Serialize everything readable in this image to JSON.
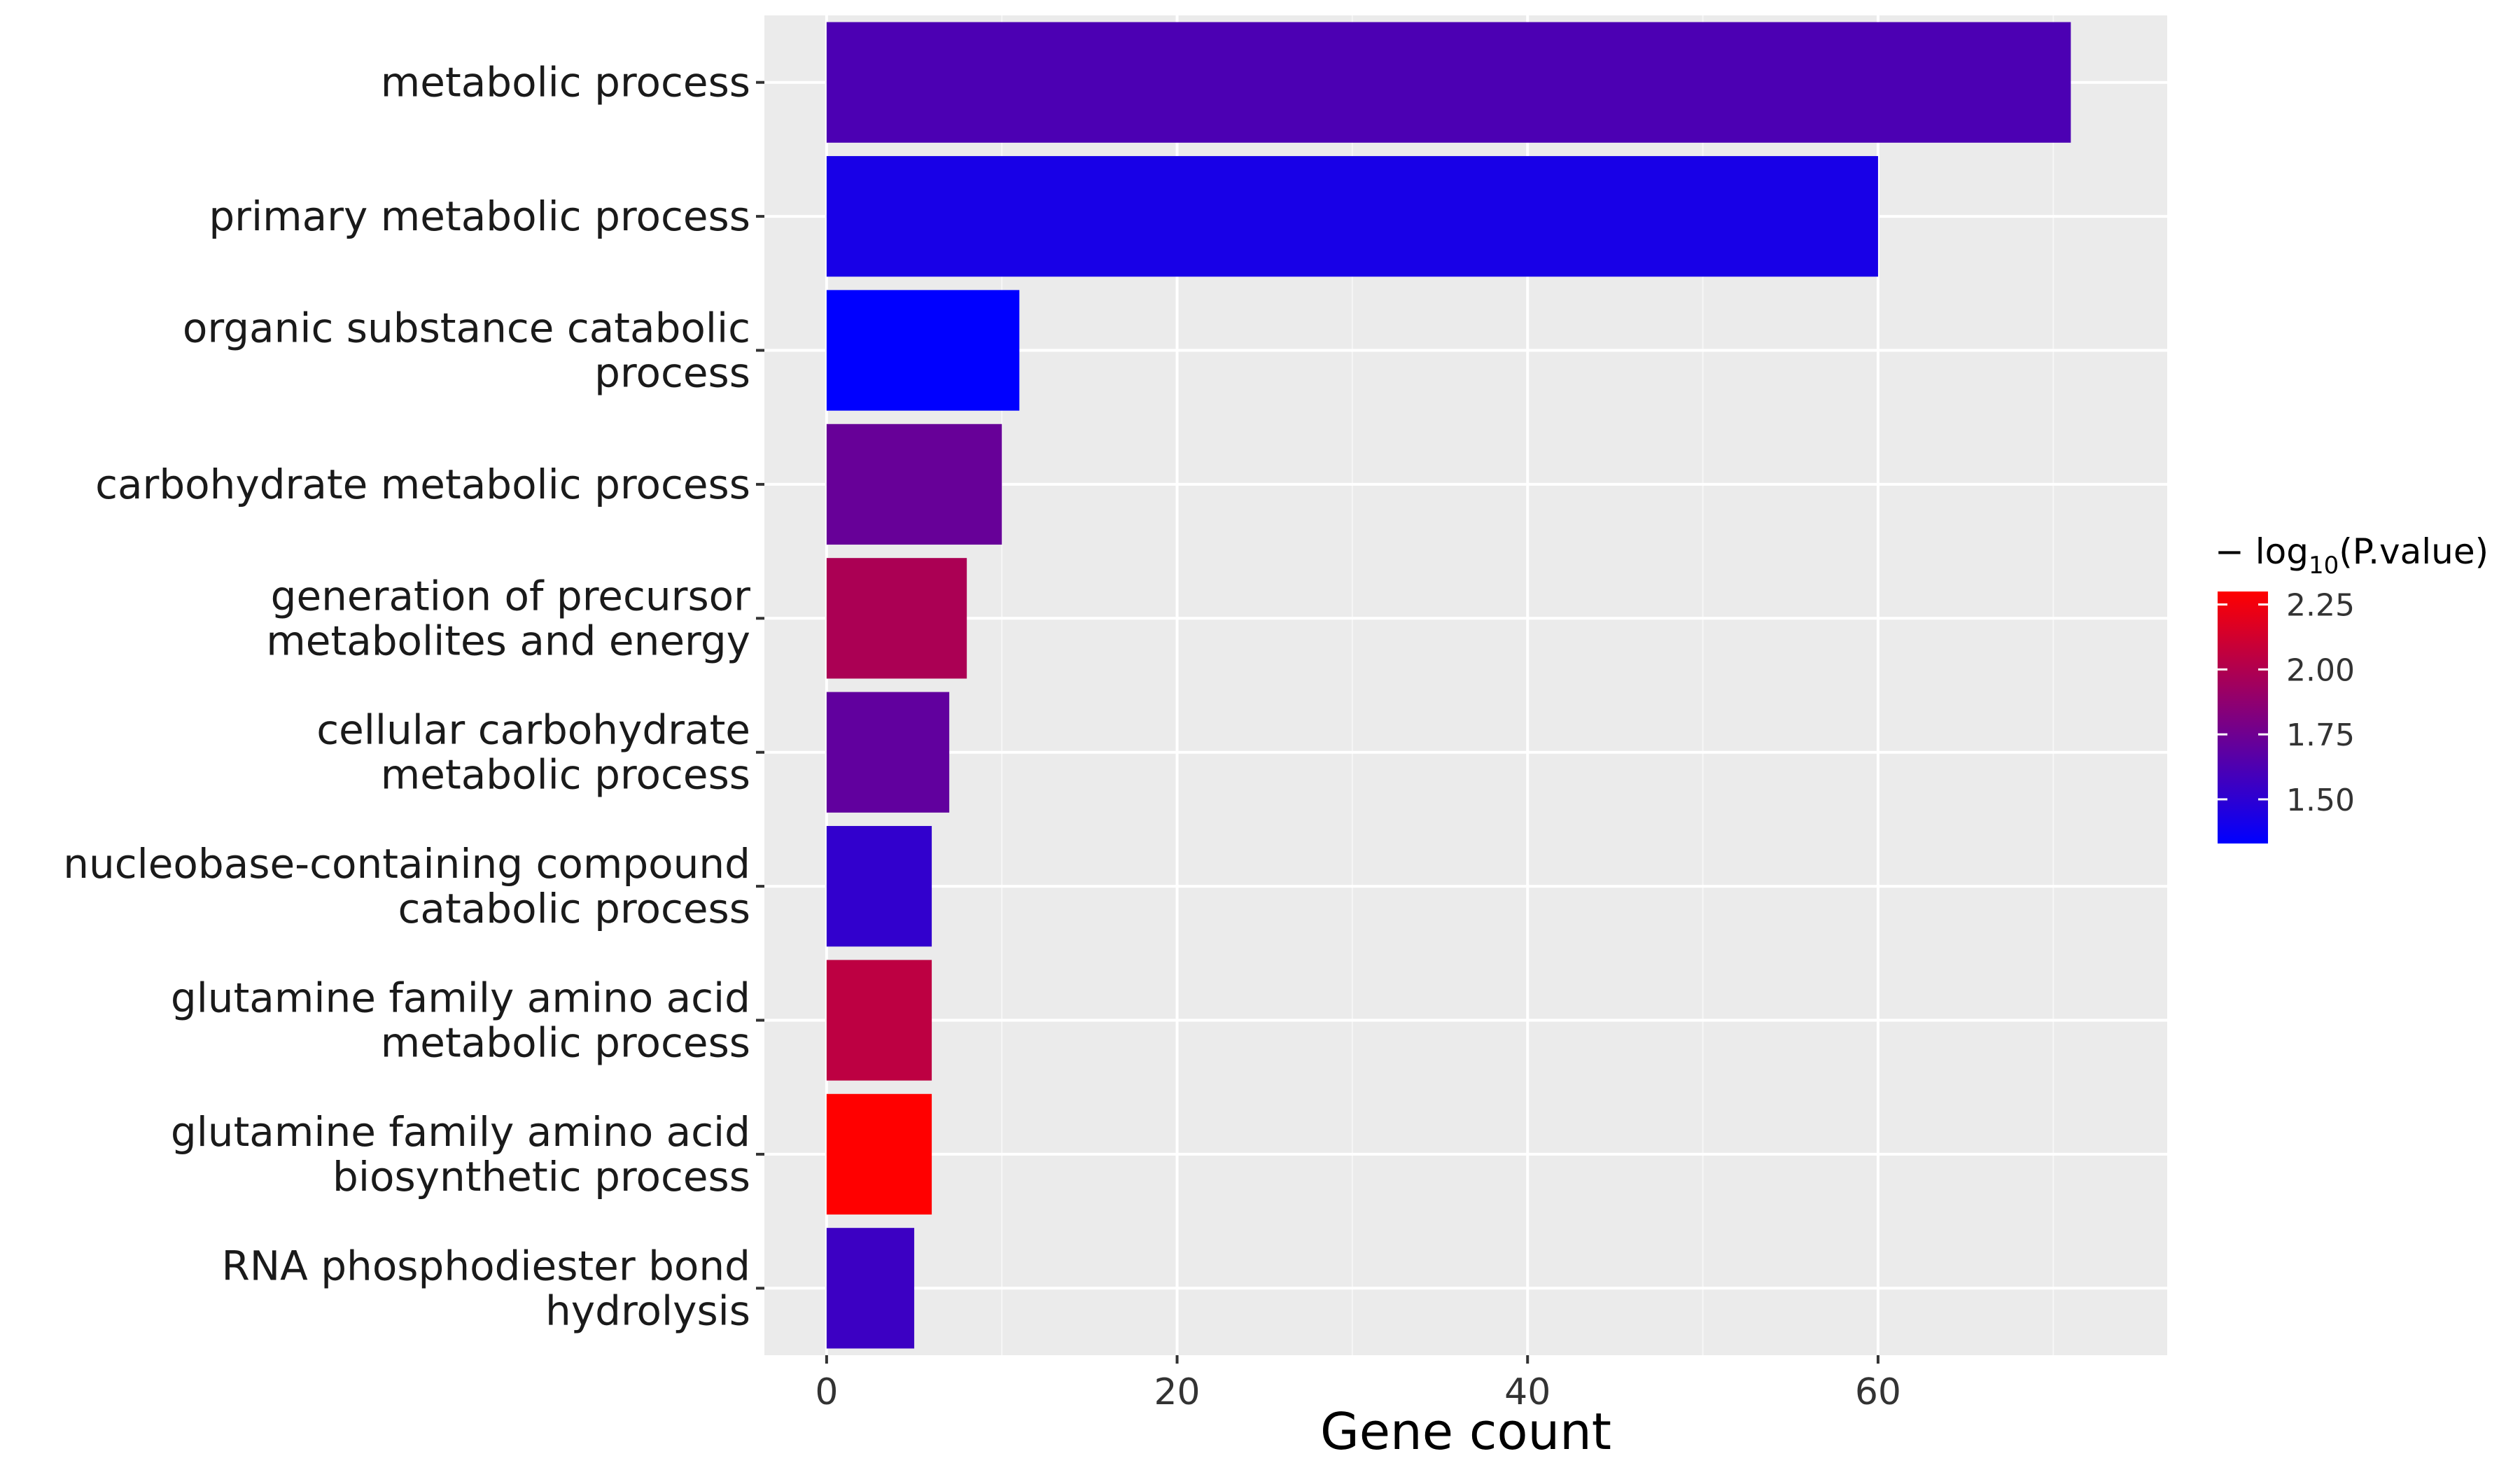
{
  "chart_data": {
    "type": "bar",
    "orientation": "horizontal",
    "categories": [
      "metabolic process",
      "primary metabolic process",
      "organic substance catabolic process",
      "carbohydrate metabolic process",
      "generation of precursor metabolites and energy",
      "cellular carbohydrate metabolic process",
      "nucleobase-containing compound catabolic process",
      "glutamine family amino acid metabolic process",
      "glutamine family amino acid biosynthetic process",
      "RNA phosphodiester bond hydrolysis"
    ],
    "category_label_lines": [
      [
        "metabolic process"
      ],
      [
        "primary metabolic process"
      ],
      [
        "organic substance catabolic",
        "process"
      ],
      [
        "carbohydrate metabolic process"
      ],
      [
        "generation of precursor",
        "metabolites and energy"
      ],
      [
        "cellular carbohydrate",
        "metabolic process"
      ],
      [
        "nucleobase-containing compound",
        "catabolic process"
      ],
      [
        "glutamine family amino acid",
        "metabolic process"
      ],
      [
        "glutamine family amino acid",
        "biosynthetic process"
      ],
      [
        "RNA phosphodiester bond",
        "hydrolysis"
      ]
    ],
    "values": [
      71,
      60,
      11,
      10,
      8,
      7,
      6,
      6,
      6,
      5
    ],
    "color_values": [
      1.62,
      1.42,
      1.33,
      1.72,
      1.98,
      1.7,
      1.52,
      2.05,
      2.3,
      1.56
    ],
    "xlabel": "Gene count",
    "ylabel": "",
    "xlim": [
      -3.55,
      76.5
    ],
    "xticks": [
      0,
      20,
      40,
      60
    ],
    "xtick_labels": [
      "0",
      "20",
      "40",
      "60"
    ],
    "grid": true,
    "legend": {
      "title_prefix": "− log",
      "title_subscript": "10",
      "title_suffix": "(P.value)",
      "placement": "right",
      "color_low": "#0000ff",
      "color_high": "#ff0000",
      "range": [
        1.33,
        2.3
      ],
      "ticks": [
        1.5,
        1.75,
        2.0,
        2.25
      ],
      "tick_labels": [
        "1.50",
        "1.75",
        "2.00",
        "2.25"
      ]
    },
    "colors": {
      "panel_background": "#ebebeb",
      "grid_major": "#ffffff",
      "grid_minor": "#f6f6f6"
    }
  }
}
